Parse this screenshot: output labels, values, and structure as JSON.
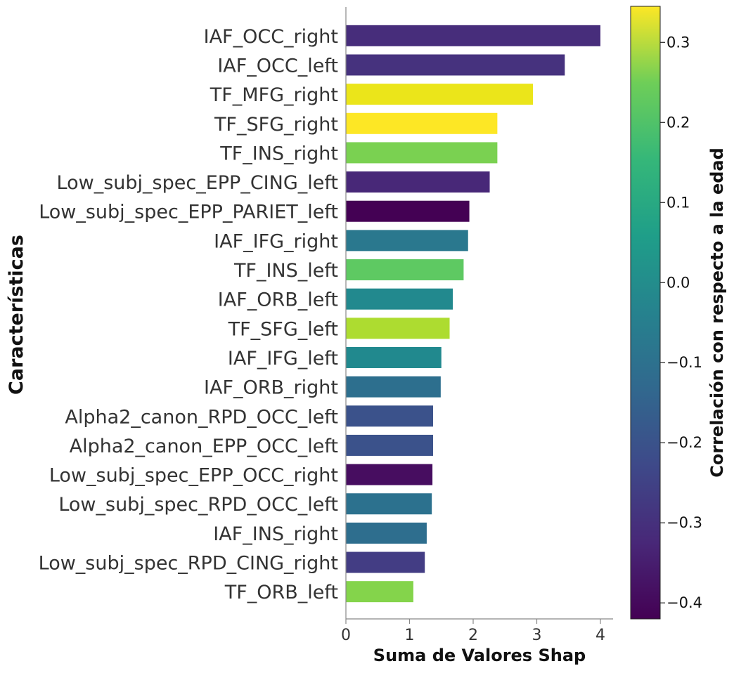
{
  "chart_data": {
    "type": "bar",
    "orientation": "horizontal",
    "xlabel": "Suma de Valores Shap",
    "ylabel": "Características",
    "xlim": [
      0,
      4.2
    ],
    "xticks": [
      0,
      1,
      2,
      3,
      4
    ],
    "grid": false,
    "colormap": "viridis",
    "categories": [
      "IAF_OCC_right",
      "IAF_OCC_left",
      "TF_MFG_right",
      "TF_SFG_right",
      "TF_INS_right",
      "Low_subj_spec_EPP_CING_left",
      "Low_subj_spec_EPP_PARIET_left",
      "IAF_IFG_right",
      "TF_INS_left",
      "IAF_ORB_left",
      "TF_SFG_left",
      "IAF_IFG_left",
      "IAF_ORB_right",
      "Alpha2_canon_RPD_OCC_left",
      "Alpha2_canon_EPP_OCC_left",
      "Low_subj_spec_EPP_OCC_right",
      "Low_subj_spec_RPD_OCC_left",
      "IAF_INS_right",
      "Low_subj_spec_RPD_CING_right",
      "TF_ORB_left"
    ],
    "values": [
      4.0,
      3.44,
      2.94,
      2.38,
      2.38,
      2.26,
      1.94,
      1.92,
      1.85,
      1.68,
      1.63,
      1.5,
      1.49,
      1.37,
      1.37,
      1.36,
      1.35,
      1.27,
      1.24,
      1.06
    ],
    "correlation": [
      -0.33,
      -0.32,
      0.31,
      0.345,
      0.19,
      -0.36,
      -0.42,
      -0.09,
      0.16,
      -0.04,
      0.26,
      -0.04,
      -0.13,
      -0.24,
      -0.24,
      -0.41,
      -0.13,
      -0.11,
      -0.29,
      0.2
    ],
    "colors": [
      "#472d7b",
      "#46327e",
      "#ebe51a",
      "#fde725",
      "#7ad151",
      "#482878",
      "#440154",
      "#2a788e",
      "#5ec962",
      "#22898e",
      "#addc30",
      "#21898e",
      "#2d6f8e",
      "#3b528b",
      "#3b528b",
      "#470d60",
      "#2c718e",
      "#2e6e8e",
      "#433d84",
      "#84d44b"
    ],
    "colorbar": {
      "label": "Correlación con respecto a la edad",
      "min": -0.42,
      "max": 0.345,
      "ticks": [
        0.3,
        0.2,
        0.1,
        0.0,
        -0.1,
        -0.2,
        -0.3,
        -0.4
      ],
      "tick_labels": [
        "0.3",
        "0.2",
        "0.1",
        "0.0",
        "−0.1",
        "−0.2",
        "−0.3",
        "−0.4"
      ]
    }
  }
}
